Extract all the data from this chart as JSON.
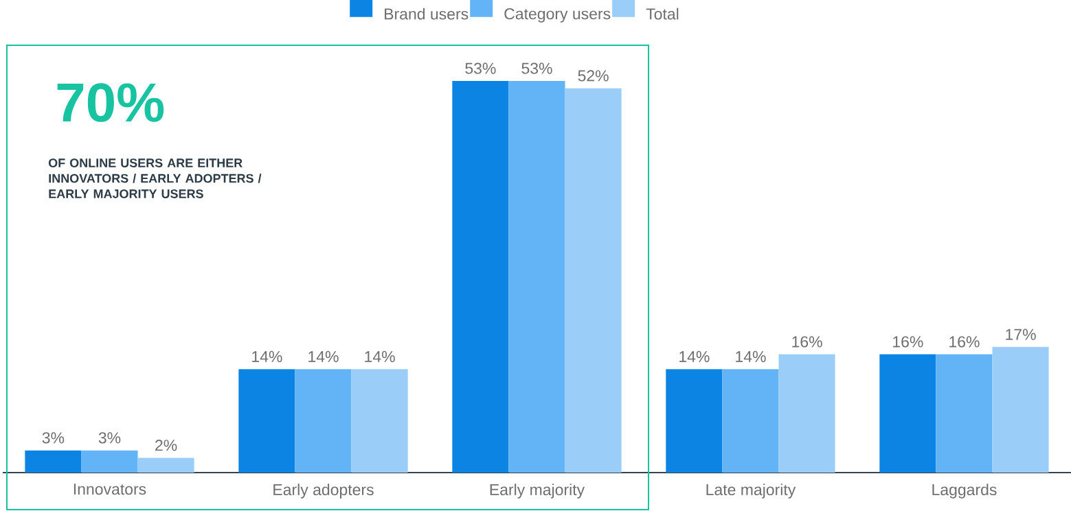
{
  "chart_data": {
    "type": "bar",
    "categories": [
      "Innovators",
      "Early adopters",
      "Early majority",
      "Late majority",
      "Laggards"
    ],
    "series": [
      {
        "name": "Brand users",
        "color": "#0b84e3",
        "values": [
          3,
          14,
          53,
          14,
          16
        ],
        "value_labels": [
          "3%",
          "14%",
          "53%",
          "14%",
          "16%"
        ]
      },
      {
        "name": "Category users",
        "color": "#63b4f7",
        "values": [
          3,
          14,
          53,
          14,
          16
        ],
        "value_labels": [
          "3%",
          "14%",
          "53%",
          "14%",
          "16%"
        ]
      },
      {
        "name": "Total",
        "color": "#9acdf8",
        "values": [
          2,
          14,
          52,
          16,
          17
        ],
        "value_labels": [
          "2%",
          "14%",
          "52%",
          "16%",
          "17%"
        ]
      }
    ],
    "legend": "top",
    "annotations": [
      "70%",
      "OF ONLINE USERS ARE EITHER INNOVATORS / EARLY ADOPTERS / EARLY MAJORITY USERS"
    ]
  }
}
